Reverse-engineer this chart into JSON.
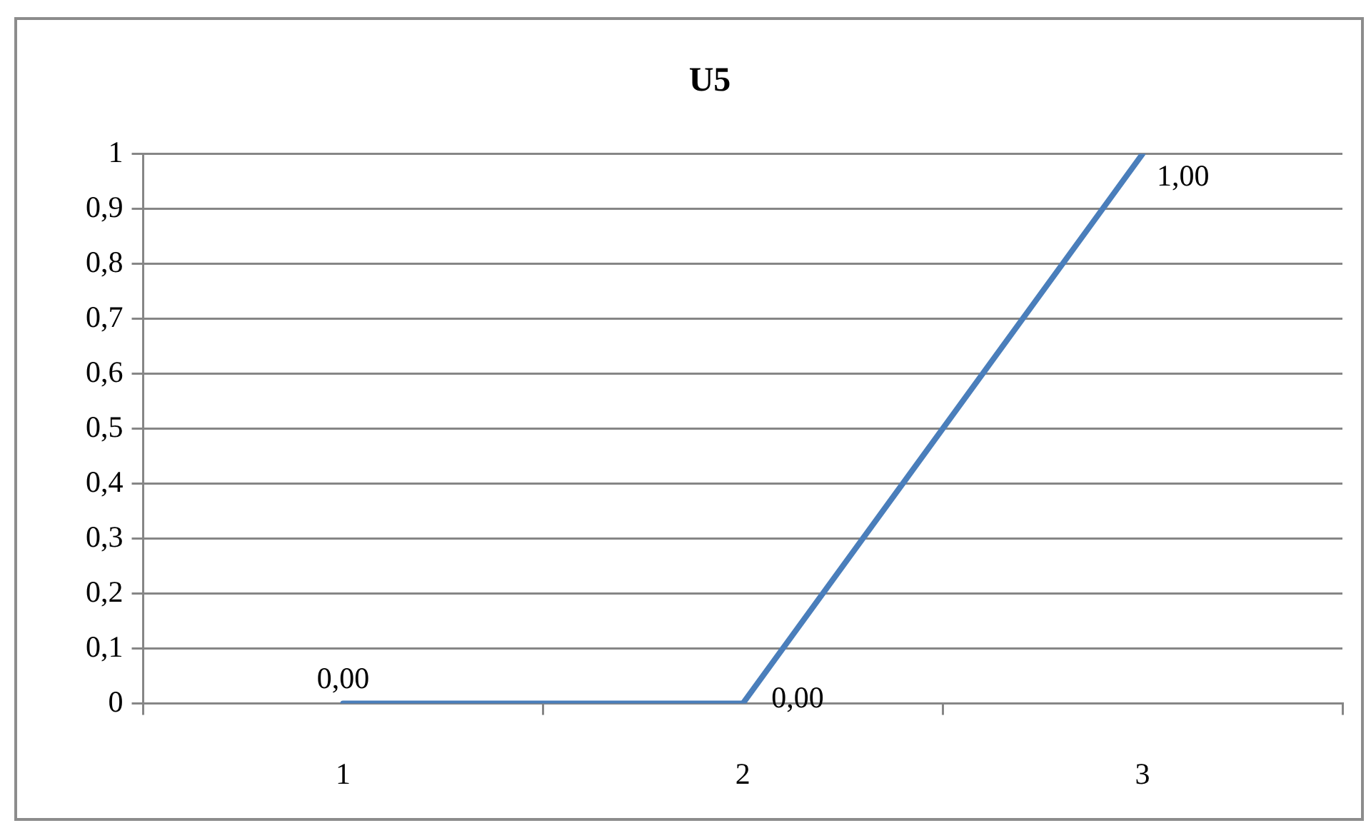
{
  "chart_data": {
    "type": "line",
    "title": "U5",
    "categories": [
      "1",
      "2",
      "3"
    ],
    "series": [
      {
        "color": "#4a7ebb",
        "values": [
          0,
          0,
          1
        ],
        "value_labels": [
          "0,00",
          "0,00",
          "1,00"
        ]
      }
    ],
    "ylim": [
      0,
      1
    ],
    "yticks": [
      0,
      {
        "value": 0.1,
        "label": "0,1"
      },
      {
        "value": 0.2,
        "label": "0,2"
      },
      {
        "value": 0.3,
        "label": "0,3"
      },
      {
        "value": 0.4,
        "label": "0,4"
      },
      {
        "value": 0.5,
        "label": "0,5"
      },
      {
        "value": 0.6,
        "label": "0,6"
      },
      {
        "value": 0.7,
        "label": "0,7"
      },
      {
        "value": 0.8,
        "label": "0,8"
      },
      {
        "value": 0.9,
        "label": "0,9"
      },
      1
    ],
    "grid": "y",
    "legend": false,
    "marker": "none",
    "line_style": "solid"
  }
}
